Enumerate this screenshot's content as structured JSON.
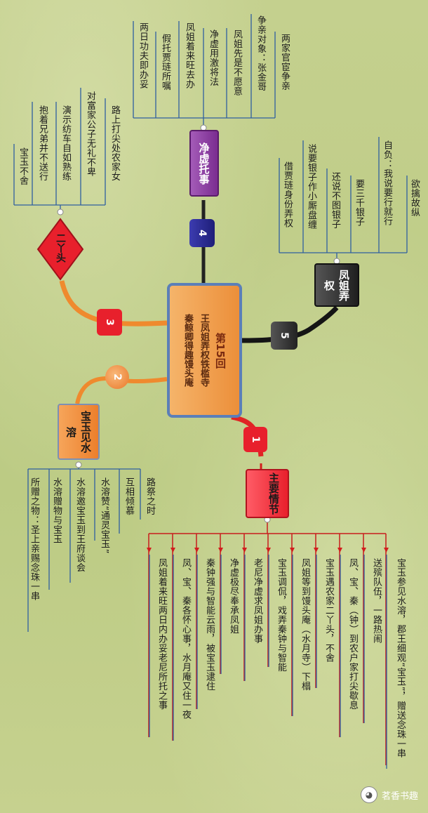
{
  "central": {
    "title": "第15回",
    "line1": "王凤姐弄权铁槛寺",
    "line2": "秦鲸卿得趣馒头庵"
  },
  "branches": [
    {
      "badge": "1",
      "label": "主要情节",
      "items": [
        "宝玉参见水溶，郡王细观“宝玉”，赠送念珠一串",
        "送殡队伍，一路热闹",
        "凤、宝、秦（钟）到农户家打尖歇息",
        "宝玉遇农家二丫头，不舍",
        "凤姐等到馒头庵（水月寺）下榻",
        "宝玉调侃，戏弄秦钟与智能",
        "老尼净虚求凤姐办事",
        "净虚极尽奉承凤姐",
        "秦钟强与智能云雨，被宝玉逮住",
        "凤、宝、秦各怀心事，水月庵又住一夜",
        "凤姐着来旺两日内办妥老尼所托之事"
      ]
    },
    {
      "badge": "2",
      "label": "宝玉见水溶",
      "items": [
        "路祭之时",
        "互相倾慕",
        "水溶赞“通灵宝玉”",
        "水溶邀宝玉到王府谈会",
        "水溶赠物与宝玉",
        "所赠之物：圣上亲赐念珠一串"
      ]
    },
    {
      "badge": "3",
      "label": "二丫头",
      "items": [
        "路上打尖处农家女",
        "对富家公子无礼不卑",
        "演示纺车自如熟练",
        "抱着兄弟并不送行",
        "宝玉不舍"
      ]
    },
    {
      "badge": "4",
      "label": "净虚托事",
      "items": [
        "两家官宦争亲",
        "争亲对象：张金哥",
        "凤姐先是不愿意",
        "净虚用激将法",
        "凤姐着来旺去办",
        "假托贾琏所嘱",
        "两日功夫即办妥"
      ]
    },
    {
      "badge": "5",
      "label": "凤姐弄权",
      "items": [
        "欲擒故纵",
        "自负：我说要行就行",
        "要三千银子",
        "还说不图银子",
        "说要银子作小厮盘缠",
        "借贾琏身份弄权"
      ]
    }
  ],
  "watermark": "茗香书趣",
  "colors": {
    "background": "#c3cf8a",
    "central_fill": "#f0a04e",
    "central_border": "#5b7fb8",
    "red": "#e8202c",
    "orange": "#ef8a2e",
    "purple": "#8a3f9c",
    "navy": "#2a2a8a",
    "dark": "#2b2b2b"
  }
}
